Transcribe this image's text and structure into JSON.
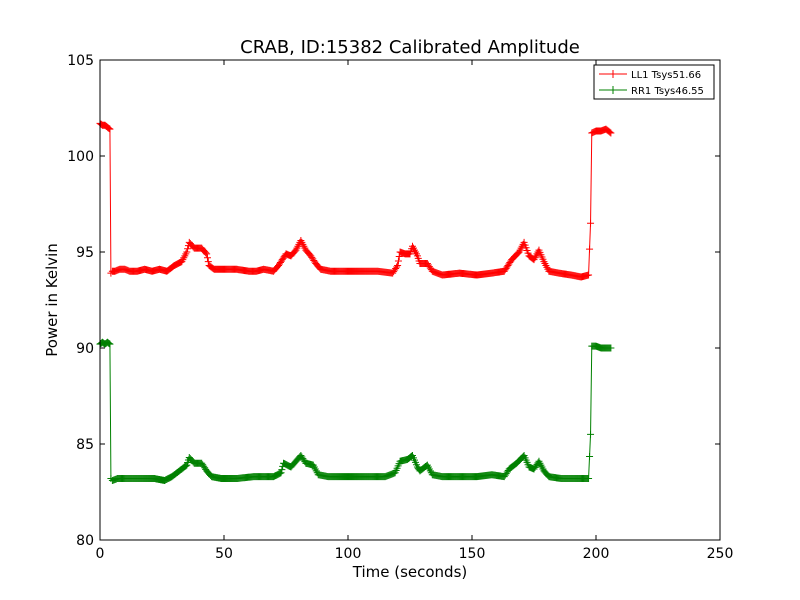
{
  "chart_data": {
    "type": "line",
    "title": "CRAB, ID:15382 Calibrated Amplitude",
    "xlabel": "Time (seconds)",
    "ylabel": "Power in Kelvin",
    "xlim": [
      0,
      250
    ],
    "ylim": [
      80,
      105
    ],
    "xticks": [
      0,
      50,
      100,
      150,
      200,
      250
    ],
    "yticks": [
      80,
      85,
      90,
      95,
      100,
      105
    ],
    "grid": false,
    "legend_position": "top-right",
    "marker": "plus",
    "series": [
      {
        "name": "LL1 Tsys51.66",
        "color": "#ff0000",
        "points": [
          [
            0,
            101.7
          ],
          [
            1,
            101.6
          ],
          [
            2,
            101.6
          ],
          [
            3,
            101.5
          ],
          [
            4,
            101.4
          ],
          [
            4.4,
            93.9
          ],
          [
            5,
            94.0
          ],
          [
            6,
            94.0
          ],
          [
            8,
            94.1
          ],
          [
            10,
            94.1
          ],
          [
            12,
            94.0
          ],
          [
            15,
            94.0
          ],
          [
            18,
            94.1
          ],
          [
            21,
            94.0
          ],
          [
            24,
            94.1
          ],
          [
            27,
            94.0
          ],
          [
            30,
            94.3
          ],
          [
            33,
            94.5
          ],
          [
            35,
            95.0
          ],
          [
            36,
            95.5
          ],
          [
            38,
            95.2
          ],
          [
            41,
            95.2
          ],
          [
            43,
            94.9
          ],
          [
            44,
            94.3
          ],
          [
            46,
            94.1
          ],
          [
            50,
            94.1
          ],
          [
            55,
            94.1
          ],
          [
            60,
            94.0
          ],
          [
            63,
            94.0
          ],
          [
            66,
            94.1
          ],
          [
            70,
            94.0
          ],
          [
            72,
            94.3
          ],
          [
            75,
            94.9
          ],
          [
            77,
            94.8
          ],
          [
            79,
            95.1
          ],
          [
            81,
            95.6
          ],
          [
            83,
            95.1
          ],
          [
            85,
            94.8
          ],
          [
            87,
            94.4
          ],
          [
            89,
            94.1
          ],
          [
            93,
            94.0
          ],
          [
            100,
            94.0
          ],
          [
            106,
            94.0
          ],
          [
            112,
            94.0
          ],
          [
            118,
            93.9
          ],
          [
            120,
            94.3
          ],
          [
            121,
            95.0
          ],
          [
            123,
            94.9
          ],
          [
            125,
            94.9
          ],
          [
            126,
            95.3
          ],
          [
            128,
            94.8
          ],
          [
            129,
            94.4
          ],
          [
            132,
            94.4
          ],
          [
            134,
            94.0
          ],
          [
            138,
            93.8
          ],
          [
            145,
            93.9
          ],
          [
            152,
            93.8
          ],
          [
            158,
            93.9
          ],
          [
            163,
            94.0
          ],
          [
            166,
            94.6
          ],
          [
            169,
            95.0
          ],
          [
            171,
            95.5
          ],
          [
            173,
            94.8
          ],
          [
            175,
            94.6
          ],
          [
            177,
            95.1
          ],
          [
            179,
            94.5
          ],
          [
            181,
            94.0
          ],
          [
            185,
            93.9
          ],
          [
            190,
            93.8
          ],
          [
            194,
            93.7
          ],
          [
            197,
            93.8
          ],
          [
            197.8,
            96.5
          ],
          [
            198.3,
            101.2
          ],
          [
            200,
            101.3
          ],
          [
            202,
            101.3
          ],
          [
            204,
            101.4
          ],
          [
            206,
            101.2
          ]
        ]
      },
      {
        "name": "RR1 Tsys46.55",
        "color": "#008000",
        "points": [
          [
            0,
            90.2
          ],
          [
            1,
            90.3
          ],
          [
            2,
            90.2
          ],
          [
            3,
            90.3
          ],
          [
            4,
            90.2
          ],
          [
            4.4,
            83.2
          ],
          [
            5,
            83.1
          ],
          [
            7,
            83.2
          ],
          [
            10,
            83.2
          ],
          [
            14,
            83.2
          ],
          [
            18,
            83.2
          ],
          [
            22,
            83.2
          ],
          [
            26,
            83.1
          ],
          [
            29,
            83.3
          ],
          [
            32,
            83.6
          ],
          [
            35,
            83.9
          ],
          [
            36,
            84.3
          ],
          [
            38,
            84.0
          ],
          [
            41,
            84.0
          ],
          [
            43,
            83.6
          ],
          [
            45,
            83.3
          ],
          [
            49,
            83.2
          ],
          [
            55,
            83.2
          ],
          [
            62,
            83.3
          ],
          [
            67,
            83.3
          ],
          [
            70,
            83.3
          ],
          [
            73,
            83.5
          ],
          [
            74,
            84.0
          ],
          [
            77,
            83.8
          ],
          [
            79,
            84.1
          ],
          [
            81,
            84.4
          ],
          [
            83,
            84.0
          ],
          [
            86,
            83.9
          ],
          [
            88,
            83.4
          ],
          [
            92,
            83.3
          ],
          [
            100,
            83.3
          ],
          [
            108,
            83.3
          ],
          [
            115,
            83.3
          ],
          [
            119,
            83.5
          ],
          [
            121,
            84.1
          ],
          [
            124,
            84.2
          ],
          [
            126,
            84.4
          ],
          [
            128,
            83.8
          ],
          [
            129,
            83.6
          ],
          [
            132,
            83.9
          ],
          [
            134,
            83.4
          ],
          [
            138,
            83.3
          ],
          [
            145,
            83.3
          ],
          [
            152,
            83.3
          ],
          [
            158,
            83.4
          ],
          [
            163,
            83.3
          ],
          [
            165,
            83.7
          ],
          [
            168,
            84.0
          ],
          [
            171,
            84.4
          ],
          [
            173,
            83.8
          ],
          [
            175,
            83.7
          ],
          [
            177,
            84.1
          ],
          [
            179,
            83.6
          ],
          [
            181,
            83.3
          ],
          [
            186,
            83.2
          ],
          [
            190,
            83.2
          ],
          [
            194,
            83.2
          ],
          [
            197,
            83.2
          ],
          [
            197.8,
            85.5
          ],
          [
            198.3,
            90.1
          ],
          [
            200,
            90.1
          ],
          [
            202,
            90.0
          ],
          [
            204,
            90.0
          ],
          [
            206,
            90.0
          ]
        ]
      }
    ]
  }
}
